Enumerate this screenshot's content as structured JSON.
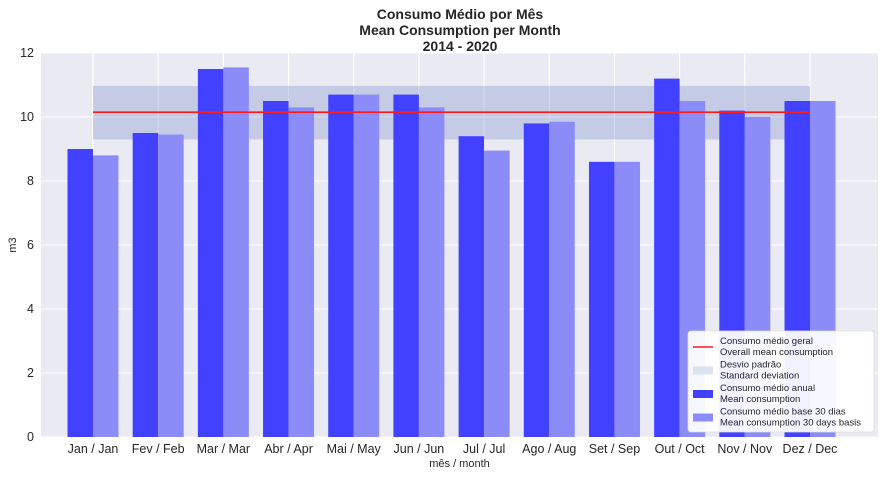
{
  "chart_data": {
    "type": "bar",
    "title_lines": [
      "Consumo Médio por Mês",
      "Mean Consumption per Month",
      "2014 - 2020"
    ],
    "xlabel": "mês / month",
    "ylabel": "m3",
    "ylim": [
      0,
      12
    ],
    "yticks": [
      0,
      2,
      4,
      6,
      8,
      10,
      12
    ],
    "grid": true,
    "legend_position": "lower right",
    "categories": [
      "Jan / Jan",
      "Fev / Feb",
      "Mar / Mar",
      "Abr / Apr",
      "Mai / May",
      "Jun / Jun",
      "Jul / Jul",
      "Ago / Aug",
      "Set / Sep",
      "Out / Oct",
      "Nov / Nov",
      "Dez / Dec"
    ],
    "series": [
      {
        "name": [
          "Consumo médio anual",
          "Mean consumption"
        ],
        "color": "#4141ff",
        "values": [
          9.0,
          9.5,
          11.5,
          10.5,
          10.7,
          10.7,
          9.4,
          9.8,
          8.6,
          11.2,
          10.2,
          10.5
        ]
      },
      {
        "name": [
          "Consumo médio base 30 dias",
          "Mean consumption 30 days basis"
        ],
        "color": "#8c8cf8",
        "values": [
          8.8,
          9.45,
          11.55,
          10.3,
          10.7,
          10.3,
          8.95,
          9.85,
          8.6,
          10.5,
          10.0,
          10.5
        ]
      }
    ],
    "overall_mean": {
      "name": [
        "Consumo médio geral",
        "Overall mean consumption"
      ],
      "color": "#ff1a1a",
      "value": 10.15
    },
    "std_band": {
      "name": [
        "Desvio padrão",
        "Standard deviation"
      ],
      "color": "#c5cbe2",
      "low": 9.3,
      "high": 10.97
    }
  }
}
